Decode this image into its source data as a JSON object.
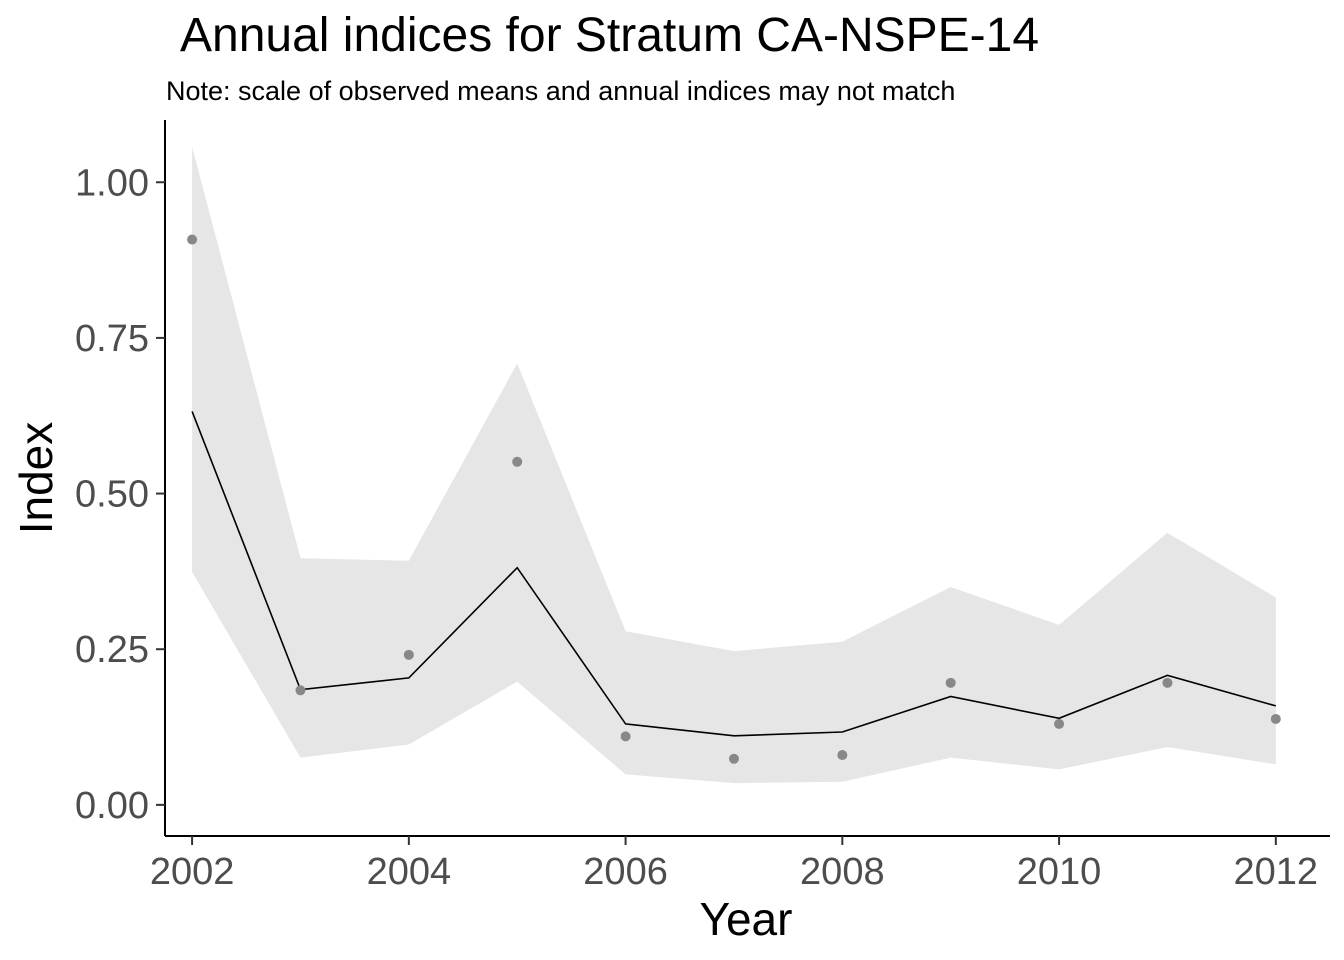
{
  "chart_data": {
    "type": "line",
    "title": "Annual indices for Stratum CA-NSPE-14",
    "subtitle": "Note: scale of observed means and annual indices may not match",
    "xlabel": "Year",
    "ylabel": "Index",
    "xlim": [
      2001.75,
      2012.5
    ],
    "ylim": [
      -0.05,
      1.1
    ],
    "grid": false,
    "x_ticks": [
      2002,
      2004,
      2006,
      2008,
      2010,
      2012
    ],
    "y_ticks": [
      0.0,
      0.25,
      0.5,
      0.75,
      1.0
    ],
    "y_tick_labels": [
      "0.00",
      "0.25",
      "0.50",
      "0.75",
      "1.00"
    ],
    "years": [
      2002,
      2003,
      2004,
      2005,
      2006,
      2007,
      2008,
      2009,
      2010,
      2011,
      2012
    ],
    "index": [
      0.632,
      0.185,
      0.204,
      0.381,
      0.13,
      0.111,
      0.117,
      0.174,
      0.139,
      0.208,
      0.159
    ],
    "lower_ci": [
      0.374,
      0.076,
      0.097,
      0.198,
      0.049,
      0.035,
      0.037,
      0.076,
      0.057,
      0.093,
      0.065
    ],
    "upper_ci": [
      1.057,
      0.396,
      0.392,
      0.709,
      0.279,
      0.247,
      0.262,
      0.35,
      0.289,
      0.437,
      0.333
    ],
    "observed_means": [
      0.908,
      0.184,
      0.241,
      0.551,
      0.11,
      0.074,
      0.08,
      0.196,
      0.13,
      0.196,
      0.138
    ],
    "colors": {
      "ribbon": "#e6e6e6",
      "line": "#000000",
      "points": "#888888",
      "tick_text": "#4d4d4d"
    }
  }
}
